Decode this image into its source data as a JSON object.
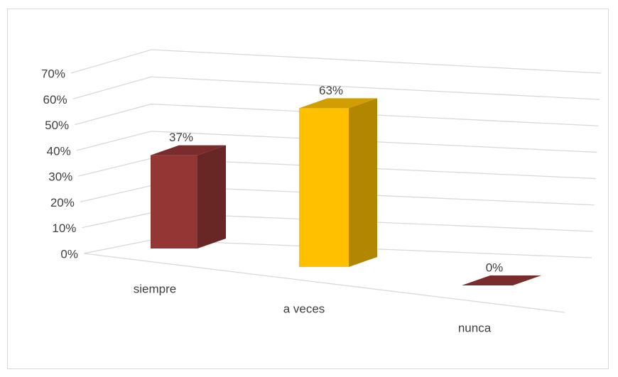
{
  "chart_data": {
    "type": "bar3d",
    "categories": [
      "siempre",
      "a veces",
      "nunca"
    ],
    "values": [
      37,
      63,
      0
    ],
    "value_labels": [
      "37%",
      "63%",
      "0%"
    ],
    "colors": [
      "#943634",
      "#ffc000",
      "#943634"
    ],
    "ylim": [
      0,
      70
    ],
    "yticks": [
      {
        "value": 0,
        "label": "0%"
      },
      {
        "value": 10,
        "label": "10%"
      },
      {
        "value": 20,
        "label": "20%"
      },
      {
        "value": 30,
        "label": "30%"
      },
      {
        "value": 40,
        "label": "40%"
      },
      {
        "value": 50,
        "label": "50%"
      },
      {
        "value": 60,
        "label": "60%"
      },
      {
        "value": 70,
        "label": "70%"
      }
    ],
    "grid": true
  }
}
